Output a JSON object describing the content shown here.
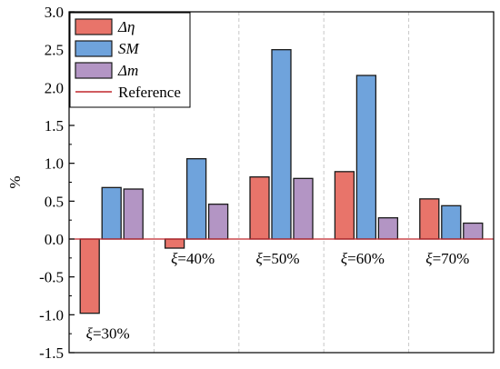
{
  "chart_data": {
    "type": "bar",
    "categories": [
      "30%",
      "40%",
      "50%",
      "60%",
      "70%"
    ],
    "category_prefix": "ξ=",
    "series": [
      {
        "name": "Δη",
        "color": "#e8746a",
        "values": [
          -0.98,
          -0.12,
          0.82,
          0.89,
          0.53
        ]
      },
      {
        "name": "SM",
        "color": "#6fa3dc",
        "values": [
          0.68,
          1.06,
          2.5,
          2.16,
          0.44
        ]
      },
      {
        "name": "Δm",
        "color": "#b395c4",
        "values": [
          0.66,
          0.46,
          0.8,
          0.28,
          0.21
        ]
      }
    ],
    "reference": {
      "name": "Reference",
      "value": 0,
      "color": "#c0262c"
    },
    "ylabel": "%",
    "xlabel": "",
    "ylim": [
      -1.5,
      3.0
    ],
    "yticks": [
      "-1.5",
      "-1.0",
      "-0.5",
      "0.0",
      "0.5",
      "1.0",
      "1.5",
      "2.0",
      "2.5",
      "3.0"
    ],
    "grid": "vertical dashed",
    "legend_position": "top-left"
  }
}
